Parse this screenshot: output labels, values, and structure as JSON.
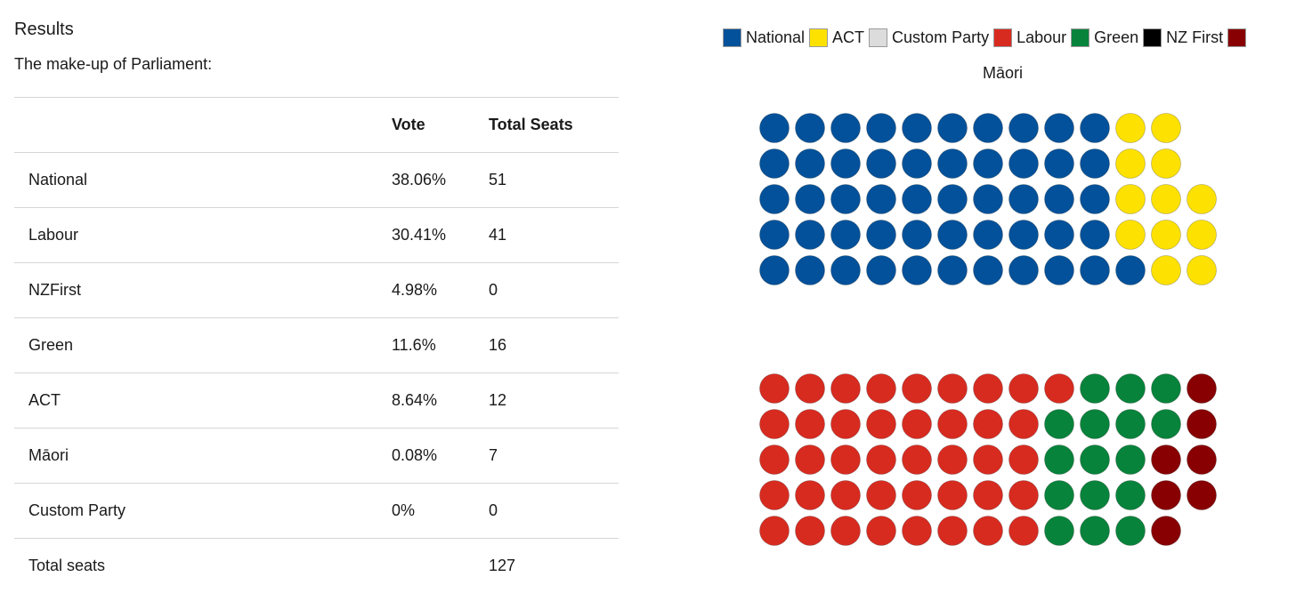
{
  "results": {
    "title": "Results",
    "subtitle": "The make-up of Parliament:",
    "table": {
      "headers": [
        "",
        "Vote",
        "Total Seats"
      ],
      "rows": [
        {
          "party": "National",
          "vote": "38.06%",
          "seats": "51"
        },
        {
          "party": "Labour",
          "vote": "30.41%",
          "seats": "41"
        },
        {
          "party": "NZFirst",
          "vote": "4.98%",
          "seats": "0"
        },
        {
          "party": "Green",
          "vote": "11.6%",
          "seats": "16"
        },
        {
          "party": "ACT",
          "vote": "8.64%",
          "seats": "12"
        },
        {
          "party": "Māori",
          "vote": "0.08%",
          "seats": "7"
        },
        {
          "party": "Custom Party",
          "vote": "0%",
          "seats": "0"
        }
      ],
      "total": {
        "label": "Total seats",
        "seats": "127"
      }
    }
  },
  "chart_data": {
    "type": "waffle",
    "legend": [
      {
        "name": "National",
        "color": "#02519a"
      },
      {
        "name": "ACT",
        "color": "#fde101"
      },
      {
        "name": "Custom Party",
        "color": "#dcdcdc"
      },
      {
        "name": "Labour",
        "color": "#d82b20"
      },
      {
        "name": "Green",
        "color": "#07833b"
      },
      {
        "name": "NZ First",
        "color": "#000000"
      },
      {
        "name": "Māori",
        "color": "#880002"
      }
    ],
    "legend_placement": "top",
    "blocks": [
      {
        "rows": [
          [
            "National",
            "National",
            "National",
            "National",
            "National",
            "National",
            "National",
            "National",
            "National",
            "National",
            "ACT",
            "ACT"
          ],
          [
            "National",
            "National",
            "National",
            "National",
            "National",
            "National",
            "National",
            "National",
            "National",
            "National",
            "ACT",
            "ACT"
          ],
          [
            "National",
            "National",
            "National",
            "National",
            "National",
            "National",
            "National",
            "National",
            "National",
            "National",
            "ACT",
            "ACT",
            "ACT"
          ],
          [
            "National",
            "National",
            "National",
            "National",
            "National",
            "National",
            "National",
            "National",
            "National",
            "National",
            "ACT",
            "ACT",
            "ACT"
          ],
          [
            "National",
            "National",
            "National",
            "National",
            "National",
            "National",
            "National",
            "National",
            "National",
            "National",
            "National",
            "ACT",
            "ACT"
          ]
        ]
      },
      {
        "rows": [
          [
            "Labour",
            "Labour",
            "Labour",
            "Labour",
            "Labour",
            "Labour",
            "Labour",
            "Labour",
            "Labour",
            "Green",
            "Green",
            "Green",
            "Māori"
          ],
          [
            "Labour",
            "Labour",
            "Labour",
            "Labour",
            "Labour",
            "Labour",
            "Labour",
            "Labour",
            "Green",
            "Green",
            "Green",
            "Green",
            "Māori"
          ],
          [
            "Labour",
            "Labour",
            "Labour",
            "Labour",
            "Labour",
            "Labour",
            "Labour",
            "Labour",
            "Green",
            "Green",
            "Green",
            "Māori",
            "Māori"
          ],
          [
            "Labour",
            "Labour",
            "Labour",
            "Labour",
            "Labour",
            "Labour",
            "Labour",
            "Labour",
            "Green",
            "Green",
            "Green",
            "Māori",
            "Māori"
          ],
          [
            "Labour",
            "Labour",
            "Labour",
            "Labour",
            "Labour",
            "Labour",
            "Labour",
            "Labour",
            "Green",
            "Green",
            "Green",
            "Māori"
          ]
        ]
      }
    ]
  }
}
